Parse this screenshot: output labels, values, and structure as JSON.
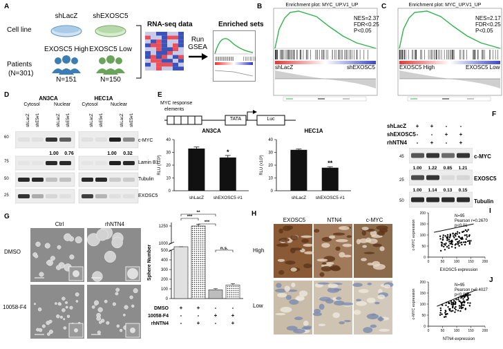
{
  "panel_labels": {
    "A": "A",
    "B": "B",
    "C": "C",
    "D": "D",
    "E": "E",
    "F": "F",
    "G": "G",
    "H": "H",
    "I": "I",
    "J": "J"
  },
  "panelA": {
    "row_cell": "Cell line",
    "row_patients": "Patients",
    "patients_n": "(N=301)",
    "shLacZ": "shLacZ",
    "shEXOSC5": "shEXOSC5",
    "high": "EXOSC5 High",
    "low": "EXOSC5 Low",
    "n_high": "N=151",
    "n_low": "N=150",
    "rnaseq": "RNA-seq data",
    "run": "Run",
    "gsea": "GSEA",
    "enriched": "Enriched sets"
  },
  "panelB": {
    "title": "Enrichment plot: MYC_UP.V1_UP",
    "nes": "NES=2.37",
    "fdr": "FDR<0.25",
    "p": "P<0.05",
    "left": "shLacZ",
    "right": "shEXOSC5"
  },
  "panelC": {
    "title": "Enrichment plot: MYC_UP.V1_UP",
    "nes": "NES=2.17",
    "fdr": "FDR<0.25",
    "p": "P<0.05",
    "left": "EXOSC5 High",
    "right": "EXOSC5 Low"
  },
  "panelD": {
    "cell1": "AN3CA",
    "cell2": "HEC1A",
    "cytosol": "Cytosol",
    "nuclear": "Nuclear",
    "lanes": [
      "shLacZ",
      "shE5#1",
      "shLacZ",
      "shE5#1",
      "shLacZ",
      "shE5#1",
      "shLacZ",
      "shE5#1"
    ],
    "markers": [
      "60",
      "75",
      "50",
      "25"
    ],
    "proteins": [
      "c-MYC",
      "Lamin B1",
      "Tubulin",
      "EXOSC5"
    ],
    "quant": [
      "1.00",
      "0.76",
      "1.00",
      "0.32"
    ]
  },
  "panelE": {
    "construct_label_1": "MYC response",
    "construct_label_2": "elements",
    "tata": "TATA",
    "luc": "Luc",
    "chart_data": [
      {
        "type": "bar",
        "title": "AN3CA",
        "categories": [
          "shLacZ",
          "shEXOSC5 #1"
        ],
        "values": [
          33,
          26
        ],
        "errors": [
          1.2,
          1.6
        ],
        "sig": [
          "",
          "*"
        ],
        "ylabel": "RLU (x10³)",
        "ylim": [
          0,
          40
        ],
        "yticks": [
          0,
          10,
          20,
          30,
          40
        ]
      },
      {
        "type": "bar",
        "title": "HEC1A",
        "categories": [
          "shLacZ",
          "shEXOSC5 #1"
        ],
        "values": [
          32,
          18
        ],
        "errors": [
          0.6,
          0.8
        ],
        "sig": [
          "",
          "**"
        ],
        "ylabel": "RLU (x10³)",
        "ylim": [
          0,
          40
        ],
        "yticks": [
          0,
          10,
          20,
          30,
          40
        ]
      }
    ]
  },
  "panelF": {
    "rows": [
      {
        "label": "shLacZ",
        "signs": [
          "+",
          "+",
          "-",
          "-"
        ]
      },
      {
        "label": "shEXOSC5",
        "signs": [
          "-",
          "-",
          "+",
          "+"
        ]
      },
      {
        "label": "rhNTN4",
        "signs": [
          "-",
          "+",
          "-",
          "+"
        ]
      }
    ],
    "markers": [
      "45",
      "25",
      "50"
    ],
    "proteins": [
      "c-MYC",
      "EXOSC5",
      "Tubulin"
    ],
    "quant_myc": [
      "1.00",
      "1.22",
      "0.85",
      "1.21"
    ],
    "quant_exosc5": [
      "1.00",
      "1.14",
      "0.13",
      "0.15"
    ]
  },
  "panelG": {
    "ctrl": "Ctrl",
    "rhntn4": "rhNTN4",
    "dmso": "DMSO",
    "inhibitor": "10058-F4",
    "chart_data": {
      "type": "bar",
      "categories": [
        "DMSO",
        "DMSO + rhNTN4",
        "10058-F4",
        "10058-F4 + rhNTN4"
      ],
      "values": [
        520,
        1250,
        90,
        140
      ],
      "errors": [
        30,
        25,
        12,
        15
      ],
      "ylabel": "Sphere Number",
      "ylim": [
        0,
        1300
      ],
      "yticks_lower": [
        0,
        100,
        200,
        300,
        400,
        500
      ],
      "yticks_upper": [
        1000,
        1250
      ],
      "axis_break": [
        500,
        1000
      ],
      "sig_labels": [
        "**",
        "***",
        "***",
        "n.s."
      ],
      "condition_rows": [
        {
          "label": "DMSO",
          "signs": [
            "+",
            "+",
            "-",
            "-"
          ]
        },
        {
          "label": "10058-F4",
          "signs": [
            "-",
            "-",
            "+",
            "+"
          ]
        },
        {
          "label": "rhNTN4",
          "signs": [
            "-",
            "+",
            "-",
            "+"
          ]
        }
      ]
    }
  },
  "panelH": {
    "cols": [
      "EXOSC5",
      "NTN4",
      "c-MYC"
    ],
    "rows": [
      "High",
      "Low"
    ]
  },
  "panelI": {
    "chart_data": {
      "type": "scatter",
      "n": "N=95",
      "pearson": "Pearson r=0.2670",
      "p": "p<0.01",
      "xlabel": "EXOSC5 expression",
      "ylabel": "c-MYC expression",
      "xlim": [
        0,
        200
      ],
      "ylim": [
        0,
        200
      ],
      "xticks": [
        0,
        50,
        100,
        150,
        200
      ],
      "yticks": [
        0,
        50,
        100,
        150,
        200
      ],
      "trend": [
        [
          20,
          112
        ],
        [
          160,
          150
        ]
      ]
    }
  },
  "panelJ": {
    "chart_data": {
      "type": "scatter",
      "n": "N=95",
      "pearson": "Pearson r=0.4027",
      "p": "p<0.001",
      "xlabel": "NTN4 expression",
      "ylabel": "c-MYC expression",
      "xlim": [
        0,
        200
      ],
      "ylim": [
        0,
        200
      ],
      "xticks": [
        0,
        50,
        100,
        150,
        200
      ],
      "yticks": [
        0,
        50,
        100,
        150,
        200
      ],
      "trend": [
        [
          30,
          90
        ],
        [
          170,
          165
        ]
      ]
    }
  }
}
